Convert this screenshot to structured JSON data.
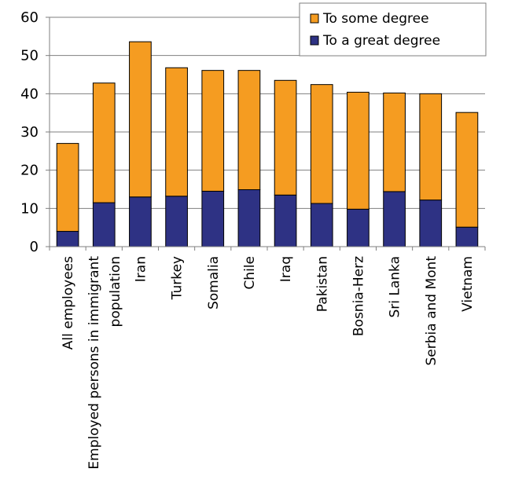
{
  "chart_data": {
    "type": "bar",
    "stacked": true,
    "title": "",
    "xlabel": "",
    "ylabel": "",
    "ylim": [
      0,
      60
    ],
    "yticks": [
      0,
      10,
      20,
      30,
      40,
      50,
      60
    ],
    "grid": true,
    "legend_position": "top-right",
    "categories": [
      [
        "All employees"
      ],
      [
        "Employed persons in immigrant",
        "population"
      ],
      [
        "Iran"
      ],
      [
        "Turkey"
      ],
      [
        "Somalia"
      ],
      [
        "Chile"
      ],
      [
        "Iraq"
      ],
      [
        "Pakistan"
      ],
      [
        "Bosnia-Herz"
      ],
      [
        "Sri Lanka"
      ],
      [
        "Serbia and Mont"
      ],
      [
        "Vietnam"
      ]
    ],
    "series": [
      {
        "name": "To a great degree",
        "color": "#2e3284",
        "values": [
          4,
          11.5,
          13,
          13.2,
          14.5,
          14.9,
          13.5,
          11.3,
          9.8,
          14.4,
          12.2,
          5.1
        ]
      },
      {
        "name": "To some degree",
        "color": "#f59c21",
        "values": [
          23,
          31.3,
          40.6,
          33.6,
          31.6,
          31.2,
          30,
          31.1,
          30.6,
          25.8,
          27.8,
          30
        ]
      }
    ],
    "legend_order": [
      "To some degree",
      "To a great degree"
    ]
  }
}
